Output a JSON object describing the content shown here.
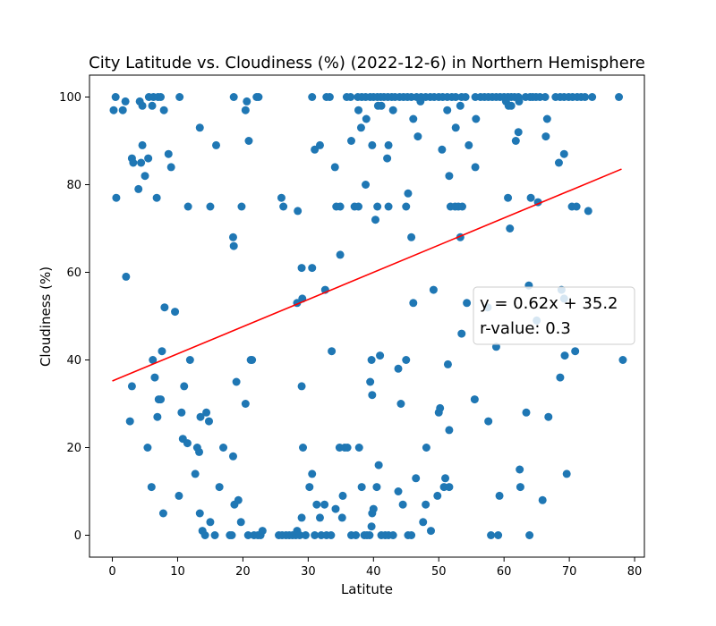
{
  "chart_data": {
    "type": "scatter",
    "title": "City Latitude vs. Cloudiness (%) (2022-12-6) in Northern Hemisphere",
    "xlabel": "Latitute",
    "ylabel": "Cloudiness (%)",
    "xlim": [
      -3.5,
      81.5
    ],
    "ylim": [
      -5,
      105
    ],
    "xticks": [
      0,
      10,
      20,
      30,
      40,
      50,
      60,
      70,
      80
    ],
    "yticks": [
      0,
      20,
      40,
      60,
      80,
      100
    ],
    "grid": false,
    "point_color": "#1f77b4",
    "line_color": "#ff0000",
    "regression": {
      "slope": 0.62,
      "intercept": 35.2,
      "x_range": [
        0,
        78
      ]
    },
    "annotation": {
      "equation": "y = 0.62x + 35.2",
      "r_value": "r-value: 0.3"
    },
    "points": [
      [
        0.2,
        97
      ],
      [
        0.5,
        100
      ],
      [
        1.6,
        97
      ],
      [
        2.0,
        99
      ],
      [
        4.2,
        99
      ],
      [
        4.6,
        98
      ],
      [
        5.6,
        100
      ],
      [
        6.1,
        98
      ],
      [
        6.3,
        100
      ],
      [
        7.0,
        100
      ],
      [
        7.4,
        100
      ],
      [
        7.9,
        97
      ],
      [
        10.3,
        100
      ],
      [
        18.6,
        100
      ],
      [
        20.4,
        97
      ],
      [
        20.6,
        99
      ],
      [
        22.1,
        100
      ],
      [
        22.4,
        100
      ],
      [
        0.6,
        77
      ],
      [
        3.0,
        86
      ],
      [
        3.2,
        85
      ],
      [
        4.4,
        85
      ],
      [
        4.6,
        89
      ],
      [
        5.0,
        82
      ],
      [
        5.5,
        86
      ],
      [
        4.0,
        79
      ],
      [
        6.8,
        77
      ],
      [
        8.6,
        87
      ],
      [
        9.0,
        84
      ],
      [
        11.6,
        75
      ],
      [
        13.4,
        93
      ],
      [
        15.0,
        75
      ],
      [
        15.9,
        89
      ],
      [
        19.8,
        75
      ],
      [
        20.9,
        90
      ],
      [
        2.1,
        59
      ],
      [
        18.5,
        68
      ],
      [
        18.6,
        66
      ],
      [
        2.7,
        26
      ],
      [
        3.0,
        34
      ],
      [
        5.4,
        20
      ],
      [
        6.0,
        11
      ],
      [
        6.2,
        40
      ],
      [
        6.5,
        36
      ],
      [
        6.9,
        27
      ],
      [
        7.1,
        31
      ],
      [
        7.4,
        31
      ],
      [
        7.6,
        42
      ],
      [
        7.8,
        5
      ],
      [
        8.0,
        52
      ],
      [
        9.6,
        51
      ],
      [
        10.2,
        9
      ],
      [
        10.6,
        28
      ],
      [
        10.8,
        22
      ],
      [
        11.0,
        34
      ],
      [
        11.5,
        21
      ],
      [
        11.9,
        40
      ],
      [
        12.7,
        14
      ],
      [
        13.0,
        20
      ],
      [
        13.3,
        19
      ],
      [
        13.4,
        5
      ],
      [
        13.5,
        27
      ],
      [
        13.8,
        1
      ],
      [
        14.2,
        0
      ],
      [
        14.4,
        28
      ],
      [
        14.8,
        26
      ],
      [
        15.0,
        3
      ],
      [
        15.7,
        0
      ],
      [
        16.4,
        11
      ],
      [
        17.0,
        20
      ],
      [
        18.0,
        0
      ],
      [
        18.3,
        0
      ],
      [
        18.5,
        18
      ],
      [
        18.7,
        7
      ],
      [
        19.0,
        35
      ],
      [
        19.3,
        8
      ],
      [
        19.7,
        3
      ],
      [
        20.4,
        30
      ],
      [
        20.8,
        0
      ],
      [
        21.2,
        40
      ],
      [
        21.4,
        40
      ],
      [
        21.7,
        0
      ],
      [
        22.3,
        0
      ],
      [
        22.7,
        0
      ],
      [
        23.0,
        1
      ],
      [
        25.5,
        0
      ],
      [
        26.0,
        0
      ],
      [
        26.6,
        0
      ],
      [
        27.1,
        0
      ],
      [
        27.6,
        0
      ],
      [
        28.1,
        0
      ],
      [
        28.3,
        1
      ],
      [
        28.7,
        0
      ],
      [
        29.0,
        4
      ],
      [
        29.2,
        20
      ],
      [
        29.6,
        0
      ],
      [
        30.2,
        11
      ],
      [
        30.6,
        14
      ],
      [
        31.0,
        0
      ],
      [
        31.3,
        7
      ],
      [
        31.8,
        4
      ],
      [
        32.0,
        0
      ],
      [
        32.5,
        7
      ],
      [
        32.8,
        0
      ],
      [
        33.5,
        0
      ],
      [
        34.2,
        6
      ],
      [
        34.8,
        20
      ],
      [
        35.2,
        4
      ],
      [
        35.3,
        9
      ],
      [
        35.6,
        20
      ],
      [
        36.0,
        20
      ],
      [
        36.6,
        0
      ],
      [
        37.3,
        0
      ],
      [
        37.8,
        20
      ],
      [
        38.2,
        11
      ],
      [
        38.6,
        0
      ],
      [
        39.0,
        0
      ],
      [
        39.4,
        0
      ],
      [
        39.7,
        2
      ],
      [
        39.8,
        5
      ],
      [
        40.0,
        6
      ],
      [
        40.5,
        11
      ],
      [
        40.8,
        16
      ],
      [
        41.2,
        0
      ],
      [
        41.8,
        0
      ],
      [
        42.3,
        0
      ],
      [
        43.0,
        0
      ],
      [
        43.8,
        10
      ],
      [
        44.5,
        7
      ],
      [
        45.3,
        0
      ],
      [
        45.8,
        0
      ],
      [
        46.5,
        13
      ],
      [
        47.6,
        3
      ],
      [
        48.0,
        7
      ],
      [
        48.1,
        20
      ],
      [
        48.8,
        1
      ],
      [
        49.8,
        9
      ],
      [
        50.0,
        28
      ],
      [
        50.2,
        29
      ],
      [
        50.8,
        11
      ],
      [
        51.0,
        13
      ],
      [
        51.6,
        11
      ],
      [
        30.6,
        100
      ],
      [
        32.8,
        100
      ],
      [
        33.3,
        100
      ],
      [
        35.9,
        100
      ],
      [
        36.5,
        100
      ],
      [
        37.6,
        100
      ],
      [
        38.2,
        100
      ],
      [
        38.8,
        100
      ],
      [
        39.5,
        100
      ],
      [
        40.0,
        100
      ],
      [
        40.6,
        100
      ],
      [
        41.1,
        100
      ],
      [
        41.6,
        100
      ],
      [
        42.2,
        100
      ],
      [
        42.8,
        100
      ],
      [
        43.3,
        100
      ],
      [
        44.0,
        100
      ],
      [
        44.6,
        100
      ],
      [
        45.2,
        100
      ],
      [
        45.8,
        100
      ],
      [
        46.6,
        100
      ],
      [
        47.3,
        100
      ],
      [
        48.0,
        100
      ],
      [
        48.7,
        100
      ],
      [
        49.3,
        100
      ],
      [
        50.0,
        100
      ],
      [
        50.6,
        100
      ],
      [
        51.3,
        100
      ],
      [
        52.0,
        100
      ],
      [
        52.6,
        100
      ],
      [
        53.5,
        100
      ],
      [
        54.1,
        100
      ],
      [
        55.6,
        100
      ],
      [
        56.4,
        100
      ],
      [
        57.0,
        100
      ],
      [
        57.6,
        100
      ],
      [
        58.2,
        100
      ],
      [
        58.8,
        100
      ],
      [
        59.4,
        100
      ],
      [
        60.0,
        100
      ],
      [
        60.6,
        100
      ],
      [
        61.1,
        100
      ],
      [
        61.6,
        100
      ],
      [
        62.2,
        100
      ],
      [
        63.3,
        100
      ],
      [
        64.0,
        100
      ],
      [
        64.4,
        100
      ],
      [
        64.9,
        100
      ],
      [
        65.5,
        100
      ],
      [
        66.3,
        100
      ],
      [
        67.9,
        100
      ],
      [
        68.6,
        100
      ],
      [
        69.2,
        100
      ],
      [
        69.9,
        100
      ],
      [
        70.5,
        100
      ],
      [
        71.2,
        100
      ],
      [
        71.8,
        100
      ],
      [
        72.4,
        100
      ],
      [
        73.5,
        100
      ],
      [
        77.6,
        100
      ],
      [
        37.7,
        97
      ],
      [
        38.9,
        95
      ],
      [
        40.7,
        98
      ],
      [
        41.2,
        98
      ],
      [
        43.0,
        97
      ],
      [
        46.1,
        95
      ],
      [
        47.2,
        99
      ],
      [
        51.3,
        97
      ],
      [
        53.3,
        98
      ],
      [
        55.7,
        95
      ],
      [
        60.3,
        99
      ],
      [
        60.7,
        98
      ],
      [
        61.1,
        98
      ],
      [
        62.3,
        99
      ],
      [
        66.6,
        95
      ],
      [
        38.1,
        93
      ],
      [
        46.8,
        91
      ],
      [
        52.6,
        93
      ],
      [
        61.8,
        90
      ],
      [
        62.2,
        92
      ],
      [
        66.4,
        91
      ],
      [
        69.2,
        87
      ],
      [
        68.4,
        85
      ],
      [
        31.0,
        88
      ],
      [
        31.8,
        89
      ],
      [
        36.6,
        90
      ],
      [
        39.8,
        89
      ],
      [
        42.3,
        89
      ],
      [
        42.1,
        86
      ],
      [
        50.5,
        88
      ],
      [
        51.6,
        82
      ],
      [
        54.6,
        89
      ],
      [
        55.6,
        84
      ],
      [
        34.1,
        84
      ],
      [
        38.8,
        80
      ],
      [
        25.9,
        77
      ],
      [
        26.2,
        75
      ],
      [
        28.4,
        74
      ],
      [
        34.3,
        75
      ],
      [
        34.9,
        75
      ],
      [
        37.1,
        75
      ],
      [
        37.7,
        75
      ],
      [
        40.3,
        72
      ],
      [
        40.6,
        75
      ],
      [
        42.3,
        75
      ],
      [
        45.0,
        75
      ],
      [
        45.3,
        78
      ],
      [
        45.8,
        68
      ],
      [
        51.8,
        75
      ],
      [
        52.5,
        75
      ],
      [
        53.0,
        75
      ],
      [
        53.6,
        75
      ],
      [
        53.3,
        68
      ],
      [
        60.6,
        77
      ],
      [
        60.9,
        70
      ],
      [
        64.1,
        77
      ],
      [
        65.2,
        76
      ],
      [
        70.4,
        75
      ],
      [
        71.1,
        75
      ],
      [
        72.9,
        74
      ],
      [
        29.0,
        61
      ],
      [
        30.6,
        61
      ],
      [
        32.6,
        56
      ],
      [
        34.9,
        64
      ],
      [
        28.3,
        53
      ],
      [
        29.1,
        54
      ],
      [
        46.1,
        53
      ],
      [
        49.2,
        56
      ],
      [
        54.3,
        53
      ],
      [
        57.5,
        52
      ],
      [
        63.8,
        57
      ],
      [
        68.8,
        56
      ],
      [
        69.2,
        54
      ],
      [
        65.0,
        49
      ],
      [
        33.6,
        42
      ],
      [
        39.5,
        35
      ],
      [
        39.7,
        40
      ],
      [
        39.8,
        32
      ],
      [
        41.0,
        41
      ],
      [
        43.8,
        38
      ],
      [
        44.2,
        30
      ],
      [
        45.0,
        40
      ],
      [
        51.4,
        39
      ],
      [
        51.6,
        24
      ],
      [
        53.5,
        46
      ],
      [
        55.5,
        31
      ],
      [
        57.6,
        26
      ],
      [
        58.8,
        43
      ],
      [
        59.1,
        0
      ],
      [
        59.3,
        9
      ],
      [
        58.0,
        0
      ],
      [
        62.4,
        15
      ],
      [
        62.5,
        11
      ],
      [
        63.4,
        28
      ],
      [
        63.9,
        0
      ],
      [
        65.9,
        8
      ],
      [
        66.8,
        27
      ],
      [
        68.6,
        36
      ],
      [
        69.3,
        41
      ],
      [
        69.6,
        14
      ],
      [
        70.9,
        42
      ],
      [
        78.2,
        40
      ],
      [
        29.0,
        34
      ]
    ]
  }
}
